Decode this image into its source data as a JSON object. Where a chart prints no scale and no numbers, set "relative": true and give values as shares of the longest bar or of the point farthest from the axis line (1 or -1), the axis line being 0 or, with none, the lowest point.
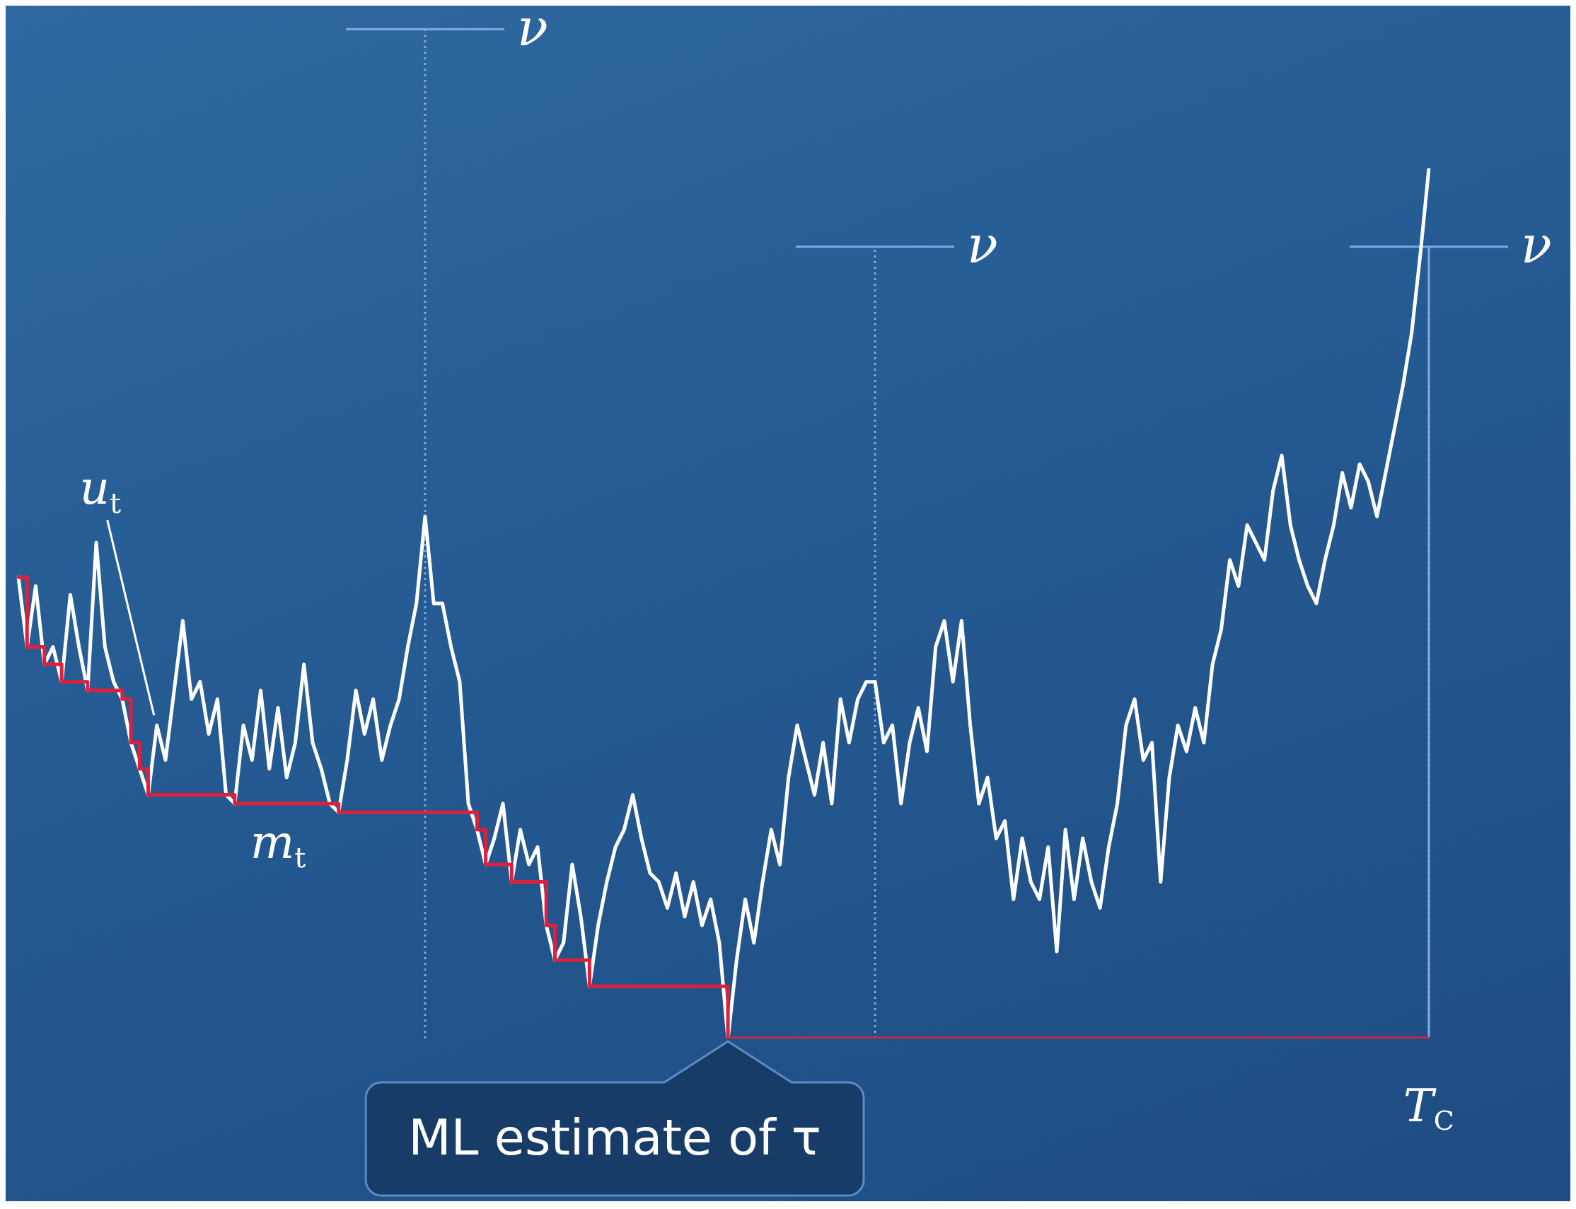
{
  "chart_data": {
    "type": "line",
    "relative": true,
    "categories": [
      null,
      null,
      null,
      null,
      null,
      null,
      null,
      null,
      null,
      null,
      null,
      null,
      null,
      null,
      null,
      null,
      null,
      null,
      null,
      null,
      null,
      null,
      null,
      null,
      null,
      null,
      null,
      null,
      null,
      null,
      null,
      null,
      null,
      null,
      null,
      null,
      null,
      null,
      null,
      null,
      null,
      null,
      null,
      null,
      null,
      null,
      null,
      null,
      null,
      null,
      null,
      null,
      null,
      null,
      null,
      null,
      null,
      null,
      null,
      null,
      null,
      null,
      null,
      null,
      null,
      null,
      null,
      null,
      null,
      null,
      null,
      null,
      null,
      null,
      null,
      null,
      null,
      null,
      null,
      null,
      null,
      null,
      null,
      null,
      null,
      null,
      null,
      null,
      null,
      null,
      null,
      null,
      null,
      null,
      null,
      null,
      null,
      null,
      null,
      null,
      null,
      null,
      null,
      null,
      null,
      null,
      null,
      null,
      null,
      null,
      null,
      null,
      null,
      null,
      null,
      null,
      null,
      null,
      null,
      null,
      null,
      null,
      null,
      null,
      null,
      null,
      null,
      null,
      null,
      null,
      null,
      null,
      null,
      null,
      null,
      null,
      null,
      null,
      null,
      null,
      null,
      null,
      null,
      null,
      null,
      null,
      null,
      null,
      null,
      null,
      null,
      null,
      null,
      null,
      null,
      null,
      null,
      null,
      null,
      null,
      null,
      null,
      null,
      null
    ],
    "series": [
      {
        "name": "u$_{t}$",
        "color": "#ffffff",
        "values": [
          0.53,
          0.45,
          0.52,
          0.43,
          0.45,
          0.41,
          0.51,
          0.45,
          0.4,
          0.57,
          0.45,
          0.41,
          0.39,
          0.34,
          0.31,
          0.28,
          0.36,
          0.32,
          0.4,
          0.48,
          0.39,
          0.41,
          0.35,
          0.39,
          0.28,
          0.27,
          0.36,
          0.32,
          0.4,
          0.31,
          0.38,
          0.3,
          0.34,
          0.43,
          0.34,
          0.31,
          0.27,
          0.26,
          0.32,
          0.4,
          0.35,
          0.39,
          0.32,
          0.36,
          0.39,
          0.45,
          0.5,
          0.6,
          0.5,
          0.5,
          0.45,
          0.41,
          0.27,
          0.24,
          0.2,
          0.23,
          0.27,
          0.18,
          0.24,
          0.2,
          0.22,
          0.13,
          0.09,
          0.11,
          0.2,
          0.14,
          0.06,
          0.13,
          0.18,
          0.22,
          0.24,
          0.28,
          0.23,
          0.19,
          0.18,
          0.15,
          0.19,
          0.14,
          0.18,
          0.13,
          0.16,
          0.11,
          0,
          0.09,
          0.16,
          0.11,
          0.18,
          0.24,
          0.2,
          0.3,
          0.36,
          0.32,
          0.28,
          0.34,
          0.27,
          0.39,
          0.34,
          0.39,
          0.41,
          0.41,
          0.34,
          0.36,
          0.27,
          0.34,
          0.38,
          0.33,
          0.45,
          0.48,
          0.41,
          0.48,
          0.36,
          0.27,
          0.3,
          0.23,
          0.25,
          0.16,
          0.23,
          0.18,
          0.16,
          0.22,
          0.1,
          0.24,
          0.16,
          0.23,
          0.18,
          0.15,
          0.22,
          0.27,
          0.36,
          0.39,
          0.32,
          0.34,
          0.18,
          0.3,
          0.36,
          0.33,
          0.38,
          0.34,
          0.43,
          0.47,
          0.55,
          0.52,
          0.59,
          0.57,
          0.55,
          0.63,
          0.67,
          0.59,
          0.55,
          0.52,
          0.5,
          0.55,
          0.59,
          0.65,
          0.61,
          0.66,
          0.64,
          0.6,
          0.65,
          0.7,
          0.75,
          0.81,
          0.9,
          1
        ]
      },
      {
        "name": "m$_{t}$",
        "type": "step",
        "color": "#e0203a",
        "values": [
          0.53,
          0.45,
          0.45,
          0.43,
          0.43,
          0.41,
          0.41,
          0.41,
          0.4,
          0.4,
          0.4,
          0.4,
          0.39,
          0.34,
          0.31,
          0.28,
          0.28,
          0.28,
          0.28,
          0.28,
          0.28,
          0.28,
          0.28,
          0.28,
          0.28,
          0.27,
          0.27,
          0.27,
          0.27,
          0.27,
          0.27,
          0.27,
          0.27,
          0.27,
          0.27,
          0.27,
          0.27,
          0.26,
          0.26,
          0.26,
          0.26,
          0.26,
          0.26,
          0.26,
          0.26,
          0.26,
          0.26,
          0.26,
          0.26,
          0.26,
          0.26,
          0.26,
          0.26,
          0.24,
          0.2,
          0.2,
          0.2,
          0.18,
          0.18,
          0.18,
          0.18,
          0.13,
          0.09,
          0.09,
          0.09,
          0.09,
          0.06,
          0.06,
          0.06,
          0.06,
          0.06,
          0.06,
          0.06,
          0.06,
          0.06,
          0.06,
          0.06,
          0.06,
          0.06,
          0.06,
          0.06,
          0.06,
          0,
          0,
          0,
          0,
          0,
          0,
          0,
          0,
          0,
          0,
          0,
          0,
          0,
          0,
          0,
          0,
          0,
          0,
          0,
          0,
          0,
          0,
          0,
          0,
          0,
          0,
          0,
          0,
          0,
          0,
          0,
          0,
          0,
          0,
          0,
          0,
          0,
          0,
          0,
          0,
          0,
          0,
          0,
          0,
          0,
          0,
          0,
          0,
          0,
          0,
          0,
          0,
          0,
          0,
          0,
          0,
          0,
          0,
          0,
          0,
          0,
          0,
          0,
          0,
          0,
          0,
          0,
          0,
          0,
          0,
          0,
          0,
          0,
          0,
          0,
          0,
          0,
          0,
          0,
          0,
          0,
          0
        ]
      }
    ],
    "annotations": [
      "ν",
      "ν",
      "ν",
      "ML estimate of τ",
      "T$_{C}$"
    ]
  }
}
